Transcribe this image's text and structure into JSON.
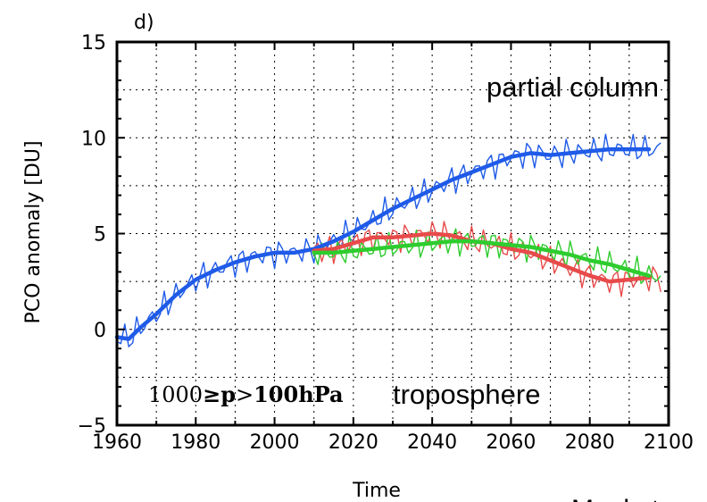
{
  "chart_data": {
    "type": "line",
    "panel_label": "d)",
    "xlabel": "Time",
    "ylabel": "PCO anomaly  [DU]",
    "xlim": [
      1960,
      2100
    ],
    "ylim": [
      -5,
      15
    ],
    "xticks": [
      1960,
      1980,
      2000,
      2020,
      2040,
      2060,
      2080,
      2100
    ],
    "yticks": [
      -5,
      0,
      5,
      10,
      15
    ],
    "grid": true,
    "annotations": {
      "top_right": "partial column",
      "pressure_prefix": "1000",
      "pressure_ge": "≥",
      "pressure_p": "p",
      "pressure_gt": ">",
      "pressure_value": "100",
      "pressure_unit": "hPa",
      "region": "troposphere",
      "credit": "Meul et"
    },
    "series": [
      {
        "color": "#1f5be8",
        "x": [
          1960,
          1963,
          1966,
          1970,
          1975,
          1980,
          1985,
          1990,
          1995,
          2000,
          2005,
          2010,
          2015,
          2020,
          2025,
          2030,
          2035,
          2040,
          2045,
          2050,
          2055,
          2060,
          2065,
          2070,
          2075,
          2080,
          2085,
          2090,
          2095
        ],
        "y": [
          -0.4,
          -0.5,
          0.1,
          0.8,
          1.8,
          2.6,
          3.1,
          3.5,
          3.8,
          4.0,
          4.0,
          4.2,
          4.6,
          5.1,
          5.7,
          6.3,
          6.8,
          7.3,
          7.8,
          8.2,
          8.6,
          9.0,
          9.2,
          9.1,
          9.2,
          9.3,
          9.4,
          9.4,
          9.4
        ]
      },
      {
        "color": "#e84a4a",
        "x": [
          2010,
          2015,
          2020,
          2025,
          2030,
          2035,
          2040,
          2045,
          2050,
          2055,
          2060,
          2065,
          2070,
          2075,
          2080,
          2085,
          2090,
          2095
        ],
        "y": [
          4.1,
          4.2,
          4.5,
          4.8,
          4.8,
          4.9,
          5.0,
          4.9,
          4.6,
          4.5,
          4.2,
          4.0,
          3.6,
          3.2,
          2.8,
          2.5,
          2.6,
          2.7
        ]
      },
      {
        "color": "#2ecc2e",
        "x": [
          2010,
          2015,
          2020,
          2025,
          2030,
          2035,
          2040,
          2045,
          2050,
          2055,
          2060,
          2065,
          2070,
          2075,
          2080,
          2085,
          2090,
          2095
        ],
        "y": [
          4.0,
          4.0,
          4.1,
          4.2,
          4.3,
          4.4,
          4.5,
          4.6,
          4.6,
          4.5,
          4.4,
          4.3,
          4.1,
          3.9,
          3.6,
          3.4,
          3.1,
          2.8
        ]
      }
    ]
  }
}
